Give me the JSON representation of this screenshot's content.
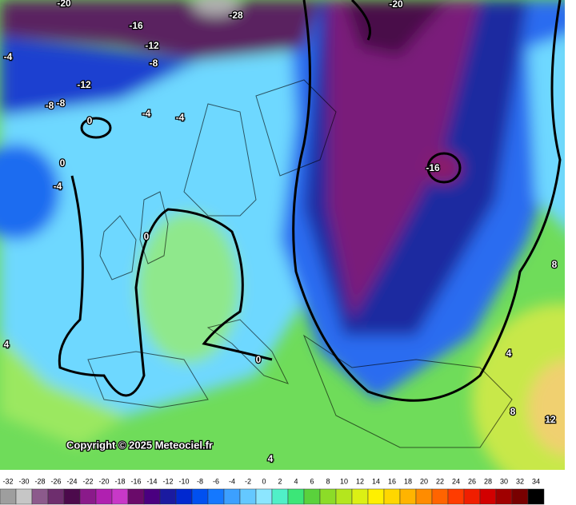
{
  "map": {
    "contour_labels": [
      -20,
      -28,
      -20,
      -16,
      -12,
      -8,
      -4,
      -12,
      -8,
      -8,
      0,
      -4,
      -4,
      0,
      -4,
      -16,
      0,
      8,
      4,
      4,
      0,
      8,
      12,
      4
    ],
    "copyright": "Copyright © 2025 Meteociel.fr",
    "scale": {
      "ticks": [
        -32,
        -30,
        -28,
        -26,
        -24,
        -22,
        -20,
        -18,
        -16,
        -14,
        -12,
        -10,
        -8,
        -6,
        -4,
        -2,
        0,
        2,
        4,
        6,
        8,
        10,
        12,
        14,
        16,
        18,
        20,
        22,
        24,
        26,
        28,
        30,
        32,
        34
      ],
      "colors": [
        "#9e9e9e",
        "#c6c6c6",
        "#8c5a8c",
        "#6e2e6e",
        "#4c0a4c",
        "#8a1a8a",
        "#b020b0",
        "#c838c8",
        "#6a0a6a",
        "#4a0080",
        "#1a1aa0",
        "#0028d0",
        "#0050f0",
        "#1478ff",
        "#3ca0ff",
        "#64c8ff",
        "#8ce6ff",
        "#50f0c8",
        "#3ce678",
        "#5ad23c",
        "#8cdc28",
        "#b4e61e",
        "#dcf014",
        "#fff000",
        "#ffd700",
        "#ffb400",
        "#ff8c00",
        "#ff6400",
        "#ff3c00",
        "#f01e00",
        "#d20000",
        "#a00000",
        "#780000",
        "#000000"
      ]
    }
  }
}
